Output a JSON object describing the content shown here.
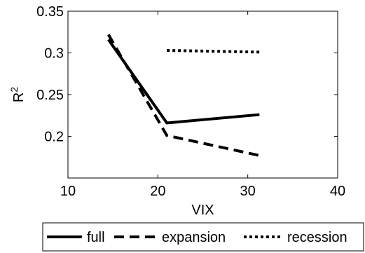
{
  "chart_data": {
    "type": "line",
    "xlabel": "VIX",
    "ylabel": "R",
    "ylabel_superscript": "2",
    "xlim": [
      10,
      40
    ],
    "ylim": [
      0.15,
      0.35
    ],
    "xticks": [
      10,
      20,
      30,
      40
    ],
    "xtick_labels": [
      "10",
      "20",
      "30",
      "40"
    ],
    "yticks": [
      0.2,
      0.25,
      0.3,
      0.35
    ],
    "ytick_labels": [
      "0.2",
      "0.25",
      "0.3",
      "0.35"
    ],
    "grid": false,
    "legend_position": "bottom",
    "series": [
      {
        "name": "full",
        "style": "solid",
        "color": "#000000",
        "x": [
          14.5,
          21.0,
          31.3
        ],
        "y": [
          0.316,
          0.216,
          0.226
        ]
      },
      {
        "name": "expansion",
        "style": "dashed",
        "color": "#000000",
        "x": [
          14.5,
          21.0,
          31.3
        ],
        "y": [
          0.322,
          0.201,
          0.177
        ]
      },
      {
        "name": "recession",
        "style": "dotted",
        "color": "#000000",
        "x": [
          21.0,
          31.3
        ],
        "y": [
          0.303,
          0.301
        ]
      }
    ]
  }
}
